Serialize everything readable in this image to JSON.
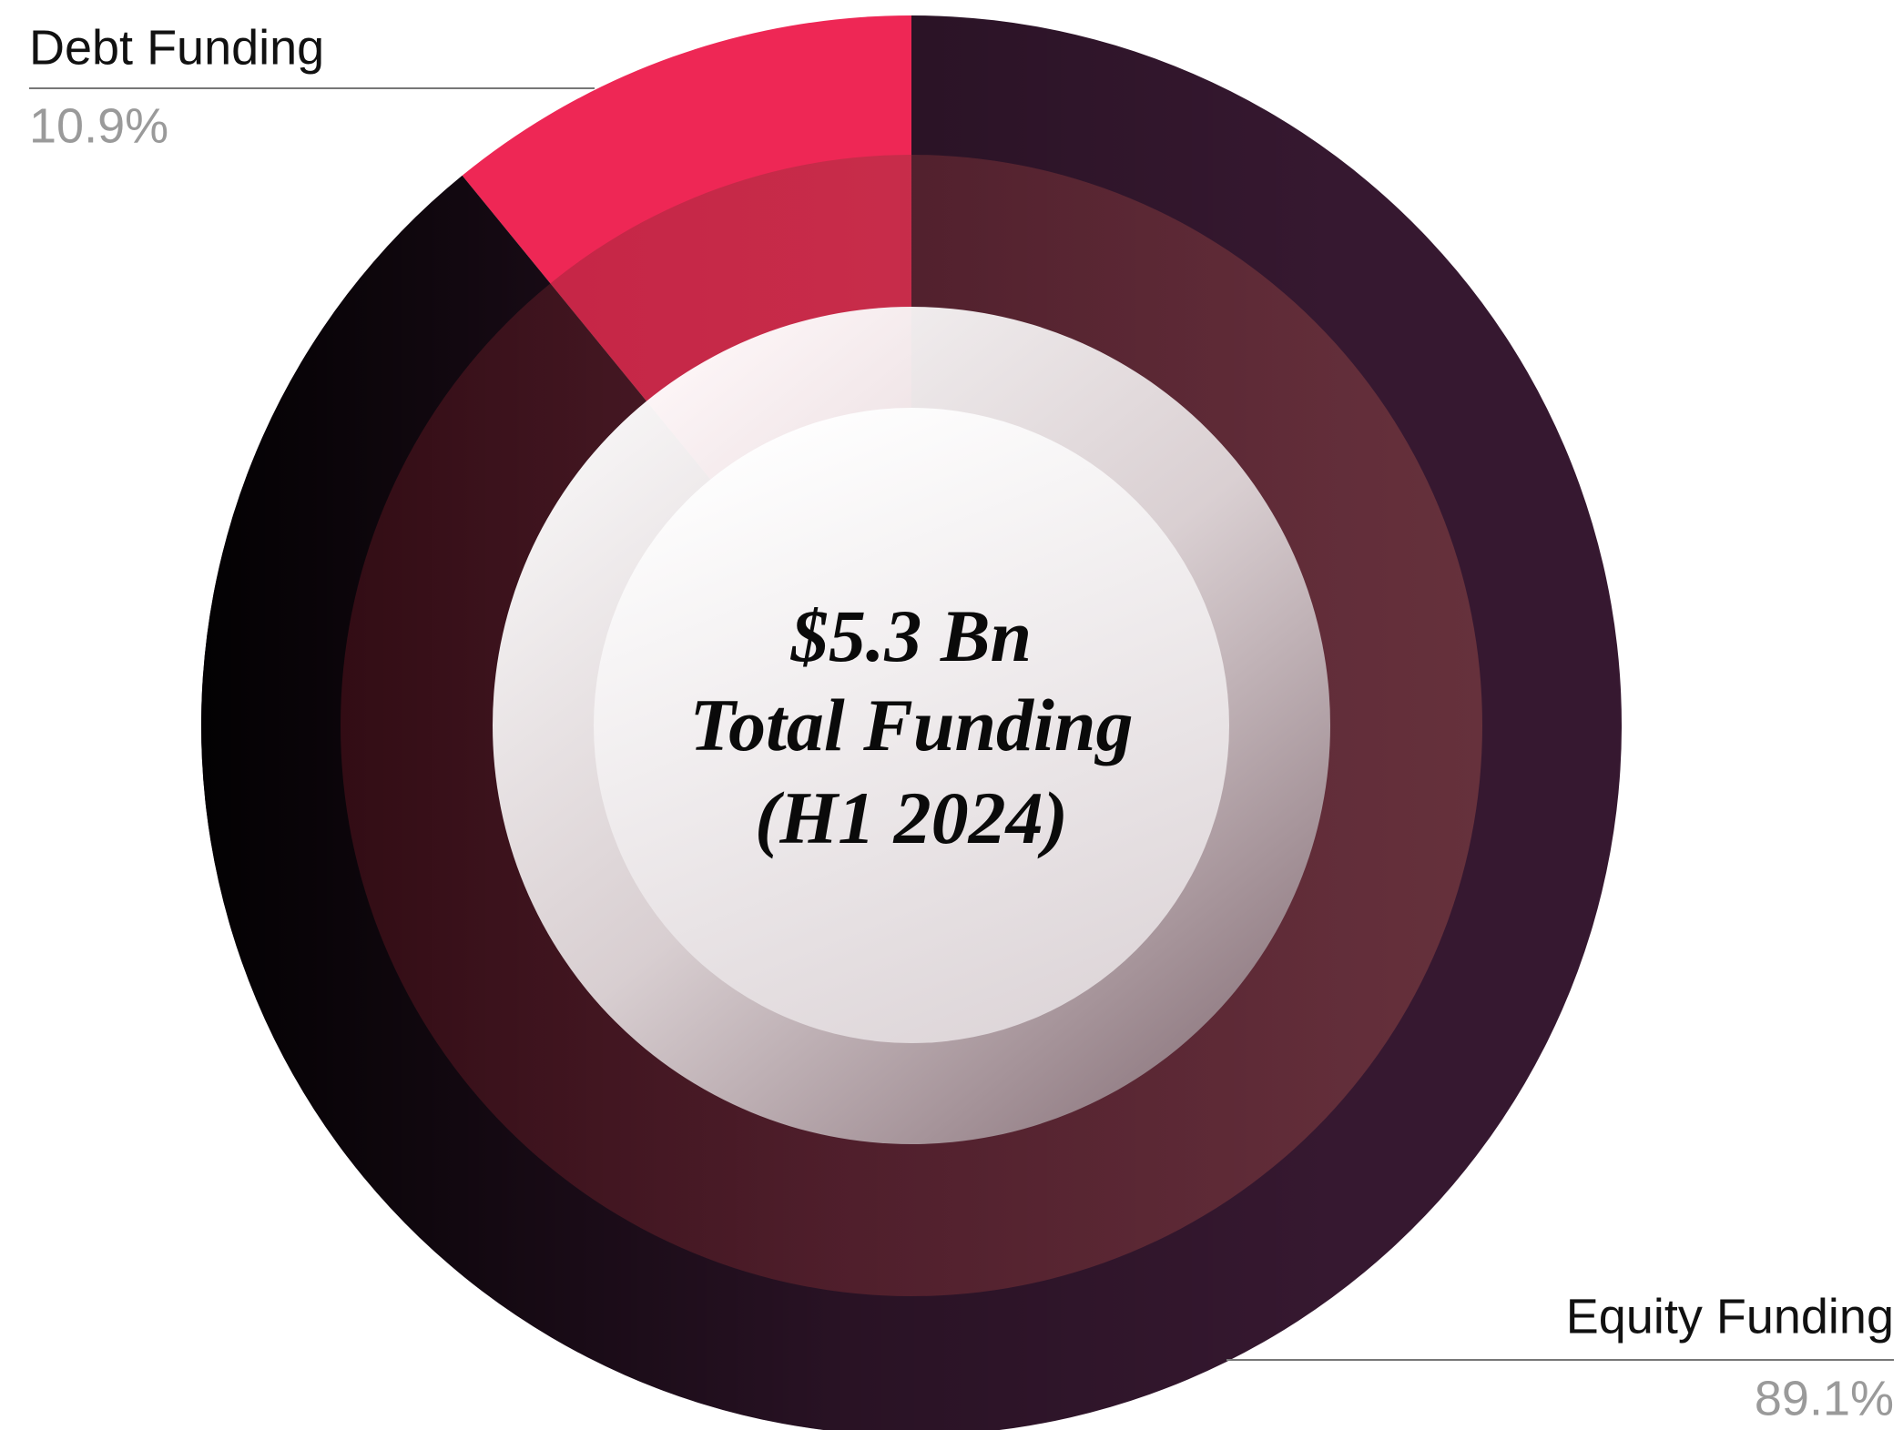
{
  "chart_data": {
    "type": "pie",
    "categories": [
      "Debt Funding",
      "Equity Funding"
    ],
    "values": [
      10.9,
      89.1
    ],
    "value_labels": [
      "10.9%",
      "89.1%"
    ],
    "colors": [
      "#ee2755",
      "#361830"
    ],
    "center_text": [
      "$5.3 Bn",
      "Total Funding",
      "(H1 2024)"
    ]
  }
}
